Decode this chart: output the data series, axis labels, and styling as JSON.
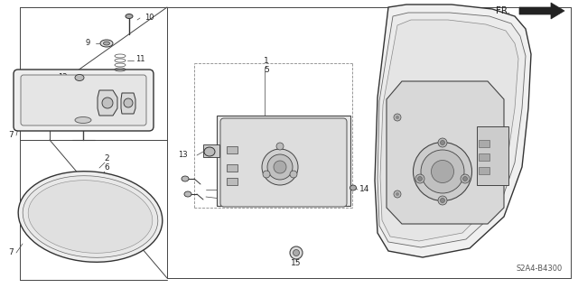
{
  "bg_color": "#ffffff",
  "lc": "#444444",
  "fig_width": 6.4,
  "fig_height": 3.19,
  "dpi": 100,
  "diagram_code": "S2A4-B4300",
  "fr_label": "FR."
}
